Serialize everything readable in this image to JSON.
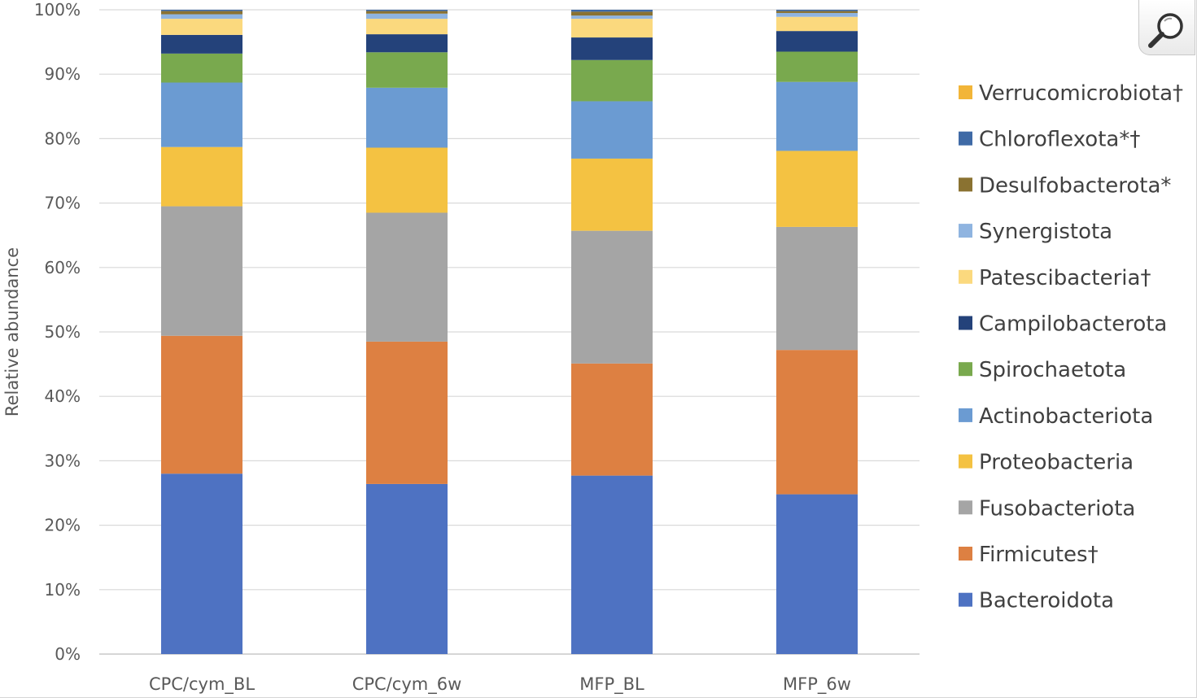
{
  "chart_data": {
    "type": "bar",
    "stacked": true,
    "title": "",
    "xlabel": "",
    "ylabel": "Relative abundance",
    "ylim": [
      0,
      100
    ],
    "yticks": [
      "0%",
      "10%",
      "20%",
      "30%",
      "40%",
      "50%",
      "60%",
      "70%",
      "80%",
      "90%",
      "100%"
    ],
    "grid": true,
    "legend_position": "right",
    "categories": [
      "CPC/cym_BL",
      "CPC/cym_6w",
      "MFP_BL",
      "MFP_6w"
    ],
    "series": [
      {
        "name": "Bacteroidota",
        "color": "#4e72c2",
        "values": [
          28.0,
          26.4,
          27.7,
          24.8
        ]
      },
      {
        "name": "Firmicutes†",
        "color": "#dd8042",
        "values": [
          21.4,
          22.1,
          17.4,
          22.4
        ]
      },
      {
        "name": "Fusobacteriota",
        "color": "#a5a5a5",
        "values": [
          20.1,
          20.0,
          20.6,
          19.1
        ]
      },
      {
        "name": "Proteobacteria",
        "color": "#f4c242",
        "values": [
          9.2,
          10.1,
          11.2,
          11.8
        ]
      },
      {
        "name": "Actinobacteriota",
        "color": "#6b9bd2",
        "values": [
          10.0,
          9.3,
          8.9,
          10.7
        ]
      },
      {
        "name": "Spirochaetota",
        "color": "#79a94e",
        "values": [
          4.5,
          5.5,
          6.4,
          4.7
        ]
      },
      {
        "name": "Campilobacterota",
        "color": "#24427a",
        "values": [
          2.9,
          2.8,
          3.5,
          3.2
        ]
      },
      {
        "name": "Patescibacteria†",
        "color": "#fbd97e",
        "values": [
          2.5,
          2.4,
          2.9,
          2.2
        ]
      },
      {
        "name": "Synergistota",
        "color": "#8fb4e0",
        "values": [
          0.7,
          0.8,
          0.5,
          0.6
        ]
      },
      {
        "name": "Desulfobacterota*",
        "color": "#8a7231",
        "values": [
          0.5,
          0.4,
          0.6,
          0.3
        ]
      },
      {
        "name": "Chloroflexota*†",
        "color": "#3f6aa6",
        "values": [
          0.2,
          0.2,
          0.3,
          0.2
        ]
      },
      {
        "name": "Verrucomicrobiota†",
        "color": "#f2b538",
        "values": [
          0.0,
          0.0,
          0.0,
          0.0
        ]
      }
    ]
  },
  "zoom_button": {
    "icon": "magnifier-icon"
  }
}
